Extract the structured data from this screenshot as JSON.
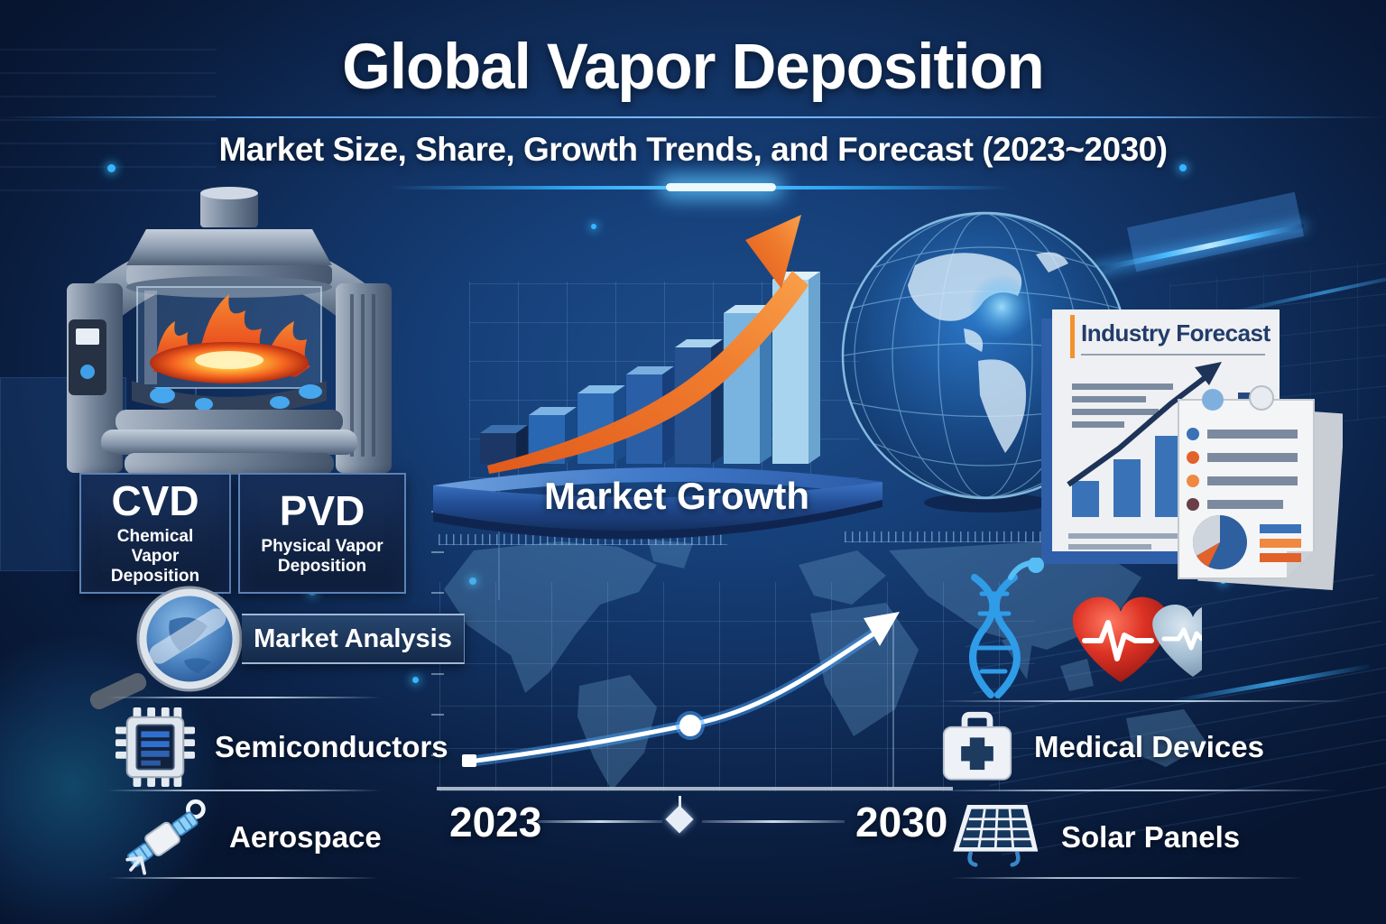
{
  "header": {
    "title": "Global Vapor Deposition",
    "subtitle": "Market Size, Share, Growth Trends, and Forecast (2023~2030)"
  },
  "processes": {
    "cvd": {
      "abbr": "CVD",
      "name": "Chemical Vapor Deposition"
    },
    "pvd": {
      "abbr": "PVD",
      "name": "Physical Vapor Deposition"
    }
  },
  "labels": {
    "market_analysis": "Market Analysis",
    "market_growth": "Market Growth",
    "industry_forecast": "Industry Forecast"
  },
  "applications": {
    "left": [
      {
        "label": "Semiconductors",
        "icon": "microchip-icon"
      },
      {
        "label": "Aerospace",
        "icon": "satellite-icon"
      }
    ],
    "right": [
      {
        "label": "Medical Devices",
        "icon": "first-aid-case-icon"
      },
      {
        "label": "Solar Panels",
        "icon": "solar-panel-icon"
      }
    ]
  },
  "timeline": {
    "start_year": "2023",
    "end_year": "2030"
  },
  "chart_data": [
    {
      "type": "bar",
      "title": "Market Growth",
      "categories": [
        "",
        "",
        "",
        "",
        "",
        "",
        ""
      ],
      "values": [
        1.0,
        1.6,
        2.3,
        2.9,
        3.8,
        4.9,
        6.0
      ],
      "ylabel": "",
      "xlabel": "",
      "note": "3D ascending bar chart, no numeric axis labels; values are relative bar heights with rising orange trend arrow",
      "bar_colors": [
        {
          "front": "#1c3766",
          "top": "#3c6fae",
          "side": "#10254a"
        },
        {
          "front": "#2a67b2",
          "top": "#7db3e4",
          "side": "#194a88"
        },
        {
          "front": "#2d6ab4",
          "top": "#85bce8",
          "side": "#1b4d8c"
        },
        {
          "front": "#2a5fa8",
          "top": "#79aede",
          "side": "#183f7c"
        },
        {
          "front": "#265292",
          "top": "#a9d2ee",
          "side": "#163463"
        },
        {
          "front": "#79b4e0",
          "top": "#c4e2f6",
          "side": "#3f7cb4"
        },
        {
          "front": "#a8d4f0",
          "top": "#ddf1fc",
          "side": "#6aa4cf"
        }
      ],
      "trend_arrow_color": "#ee7a2d"
    },
    {
      "type": "line",
      "title": "Forecast curve over world map",
      "x": [
        "2023",
        "2030"
      ],
      "values": [
        1.0,
        3.5
      ],
      "note": "Glowing white curve rising from 2023 to 2030 with square start marker, round midpoint marker and arrowhead end; grid on, no numeric ticks"
    }
  ],
  "colors": {
    "background_navy": "#102e5c",
    "accent_cyan": "#49b9ff",
    "accent_orange": "#ee7a2d",
    "paper_white": "#eef0f3",
    "doc_title_navy": "#223c6a",
    "heart_red": "#c52a20",
    "heart_steel_blue": "#9cb9d2",
    "dna_blue": "#2f9ce8"
  }
}
